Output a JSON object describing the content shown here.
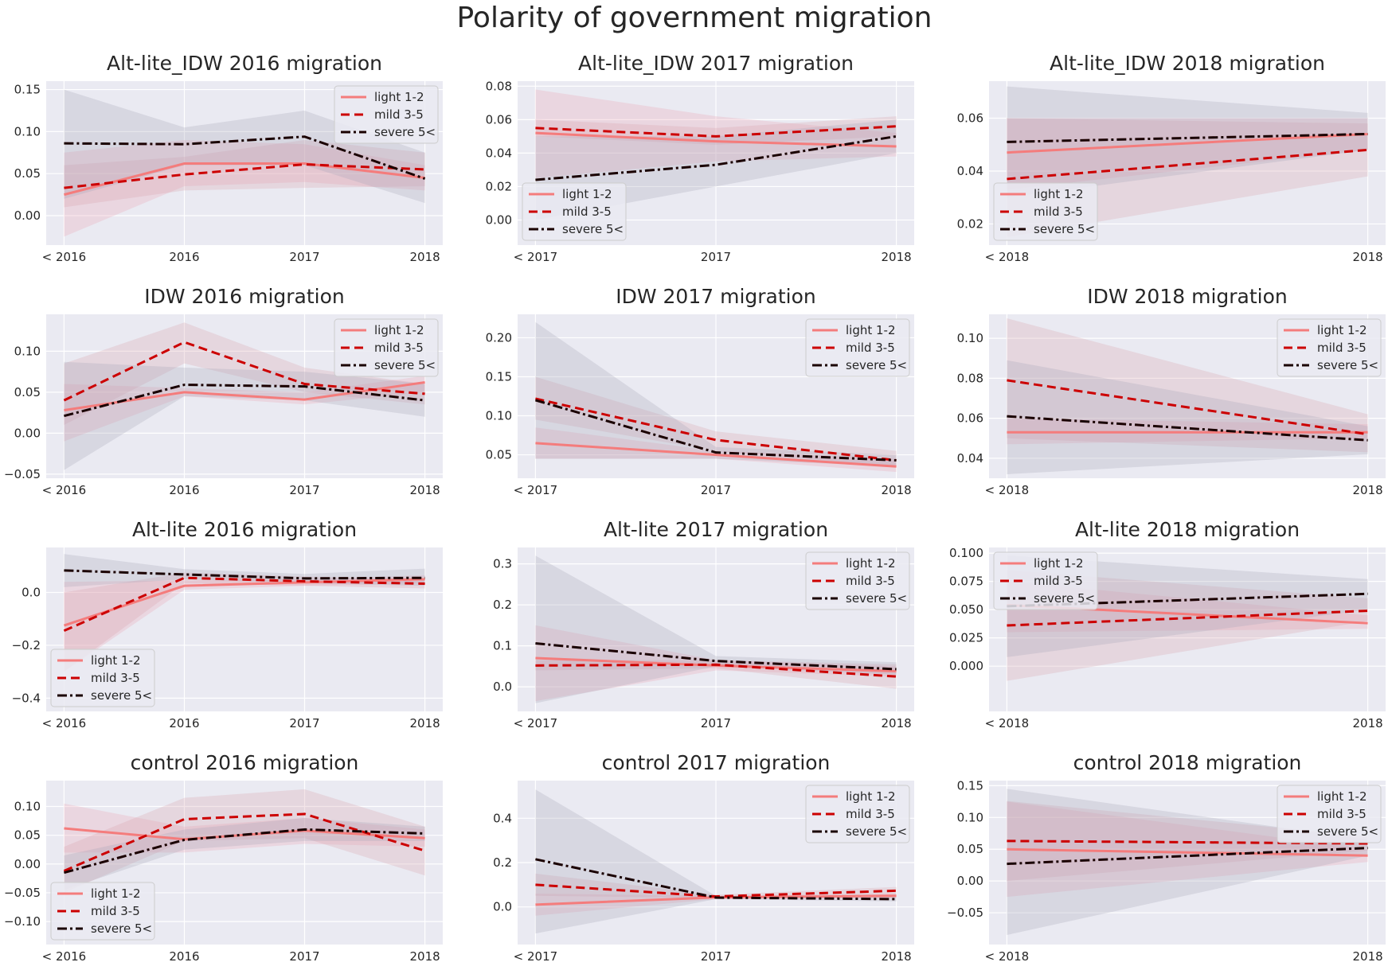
{
  "figure": {
    "title": "Polarity of government migration"
  },
  "series_styles": [
    {
      "name": "light 1-2",
      "color": "#f47c7c",
      "band": "#e8a3b3",
      "dash": ""
    },
    {
      "name": "mild 3-5",
      "color": "#cc0000",
      "band": "#d9a0ae",
      "dash": "11,6"
    },
    {
      "name": "severe 5<",
      "color": "#1a0000",
      "band": "#a6a6b8",
      "dash": "12,4,3,4"
    }
  ],
  "chart_data": [
    {
      "type": "line",
      "title": "Alt-lite_IDW 2016 migration",
      "categories": [
        "< 2016",
        "2016",
        "2017",
        "2018"
      ],
      "ylim": [
        -0.035,
        0.16
      ],
      "yticks": [
        "0.00",
        "0.05",
        "0.10",
        "0.15"
      ],
      "ytick_values": [
        0,
        0.05,
        0.1,
        0.15
      ],
      "legend": "upper-right",
      "grid": true,
      "series": [
        {
          "name": "light 1-2",
          "values": [
            0.025,
            0.062,
            0.062,
            0.045
          ],
          "lower": [
            -0.025,
            0.035,
            0.04,
            0.03
          ],
          "upper": [
            0.075,
            0.09,
            0.085,
            0.06
          ]
        },
        {
          "name": "mild 3-5",
          "values": [
            0.033,
            0.049,
            0.061,
            0.055
          ],
          "lower": [
            0.01,
            0.03,
            0.033,
            0.035
          ],
          "upper": [
            0.06,
            0.07,
            0.09,
            0.075
          ]
        },
        {
          "name": "severe 5<",
          "values": [
            0.086,
            0.085,
            0.094,
            0.044
          ],
          "lower": [
            0.02,
            0.06,
            0.06,
            0.015
          ],
          "upper": [
            0.15,
            0.105,
            0.125,
            0.075
          ]
        }
      ]
    },
    {
      "type": "line",
      "title": "Alt-lite_IDW 2017 migration",
      "categories": [
        "< 2017",
        "2017",
        "2018"
      ],
      "ylim": [
        -0.015,
        0.083
      ],
      "yticks": [
        "0.00",
        "0.02",
        "0.04",
        "0.06",
        "0.08"
      ],
      "ytick_values": [
        0,
        0.02,
        0.04,
        0.06,
        0.08
      ],
      "legend": "lower-left",
      "grid": true,
      "series": [
        {
          "name": "light 1-2",
          "values": [
            0.052,
            0.047,
            0.044
          ],
          "lower": [
            0.025,
            0.035,
            0.038
          ],
          "upper": [
            0.078,
            0.062,
            0.052
          ]
        },
        {
          "name": "mild 3-5",
          "values": [
            0.055,
            0.05,
            0.056
          ],
          "lower": [
            0.05,
            0.045,
            0.05
          ],
          "upper": [
            0.06,
            0.055,
            0.062
          ]
        },
        {
          "name": "severe 5<",
          "values": [
            0.024,
            0.033,
            0.05
          ],
          "lower": [
            0.0,
            0.02,
            0.04
          ],
          "upper": [
            0.05,
            0.05,
            0.06
          ]
        }
      ]
    },
    {
      "type": "line",
      "title": "Alt-lite_IDW 2018 migration",
      "categories": [
        "< 2018",
        "2018"
      ],
      "ylim": [
        0.012,
        0.074
      ],
      "yticks": [
        "0.02",
        "0.04",
        "0.06"
      ],
      "ytick_values": [
        0.02,
        0.04,
        0.06
      ],
      "legend": "lower-left",
      "grid": true,
      "series": [
        {
          "name": "light 1-2",
          "values": [
            0.047,
            0.054
          ],
          "lower": [
            0.033,
            0.048
          ],
          "upper": [
            0.06,
            0.06
          ]
        },
        {
          "name": "mild 3-5",
          "values": [
            0.037,
            0.048
          ],
          "lower": [
            0.015,
            0.038
          ],
          "upper": [
            0.06,
            0.058
          ]
        },
        {
          "name": "severe 5<",
          "values": [
            0.051,
            0.054
          ],
          "lower": [
            0.03,
            0.048
          ],
          "upper": [
            0.072,
            0.062
          ]
        }
      ]
    },
    {
      "type": "line",
      "title": "IDW 2016 migration",
      "categories": [
        "< 2016",
        "2016",
        "2017",
        "2018"
      ],
      "ylim": [
        -0.055,
        0.145
      ],
      "yticks": [
        "−0.05",
        "0.00",
        "0.05",
        "0.10"
      ],
      "ytick_values": [
        -0.05,
        0,
        0.05,
        0.1
      ],
      "legend": "upper-right",
      "grid": true,
      "series": [
        {
          "name": "light 1-2",
          "values": [
            0.028,
            0.05,
            0.041,
            0.062
          ],
          "lower": [
            -0.01,
            0.045,
            0.035,
            0.05
          ],
          "upper": [
            0.06,
            0.055,
            0.05,
            0.07
          ]
        },
        {
          "name": "mild 3-5",
          "values": [
            0.04,
            0.111,
            0.06,
            0.048
          ],
          "lower": [
            0.01,
            0.085,
            0.05,
            0.035
          ],
          "upper": [
            0.085,
            0.135,
            0.08,
            0.06
          ]
        },
        {
          "name": "severe 5<",
          "values": [
            0.021,
            0.059,
            0.057,
            0.04
          ],
          "lower": [
            -0.045,
            0.045,
            0.04,
            0.02
          ],
          "upper": [
            0.087,
            0.08,
            0.075,
            0.06
          ]
        }
      ]
    },
    {
      "type": "line",
      "title": "IDW 2017 migration",
      "categories": [
        "< 2017",
        "2017",
        "2018"
      ],
      "ylim": [
        0.02,
        0.23
      ],
      "yticks": [
        "0.05",
        "0.10",
        "0.15",
        "0.20"
      ],
      "ytick_values": [
        0.05,
        0.1,
        0.15,
        0.2
      ],
      "legend": "upper-right",
      "grid": true,
      "series": [
        {
          "name": "light 1-2",
          "values": [
            0.065,
            0.05,
            0.035
          ],
          "lower": [
            0.045,
            0.045,
            0.028
          ],
          "upper": [
            0.085,
            0.055,
            0.045
          ]
        },
        {
          "name": "mild 3-5",
          "values": [
            0.122,
            0.069,
            0.043
          ],
          "lower": [
            0.095,
            0.055,
            0.035
          ],
          "upper": [
            0.15,
            0.08,
            0.055
          ]
        },
        {
          "name": "severe 5<",
          "values": [
            0.12,
            0.053,
            0.043
          ],
          "lower": [
            0.045,
            0.045,
            0.035
          ],
          "upper": [
            0.22,
            0.06,
            0.05
          ]
        }
      ]
    },
    {
      "type": "line",
      "title": "IDW 2018 migration",
      "categories": [
        "< 2018",
        "2018"
      ],
      "ylim": [
        0.03,
        0.112
      ],
      "yticks": [
        "0.04",
        "0.06",
        "0.08",
        "0.10"
      ],
      "ytick_values": [
        0.04,
        0.06,
        0.08,
        0.1
      ],
      "legend": "upper-right",
      "grid": true,
      "series": [
        {
          "name": "light 1-2",
          "values": [
            0.053,
            0.053
          ],
          "lower": [
            0.047,
            0.05
          ],
          "upper": [
            0.06,
            0.057
          ]
        },
        {
          "name": "mild 3-5",
          "values": [
            0.079,
            0.052
          ],
          "lower": [
            0.05,
            0.043
          ],
          "upper": [
            0.11,
            0.062
          ]
        },
        {
          "name": "severe 5<",
          "values": [
            0.061,
            0.049
          ],
          "lower": [
            0.032,
            0.042
          ],
          "upper": [
            0.089,
            0.056
          ]
        }
      ]
    },
    {
      "type": "line",
      "title": "Alt-lite 2016 migration",
      "categories": [
        "< 2016",
        "2016",
        "2017",
        "2018"
      ],
      "ylim": [
        -0.45,
        0.17
      ],
      "yticks": [
        "−0.4",
        "−0.2",
        "0.0"
      ],
      "ytick_values": [
        -0.4,
        -0.2,
        0
      ],
      "legend": "lower-left",
      "grid": true,
      "series": [
        {
          "name": "light 1-2",
          "values": [
            -0.125,
            0.025,
            0.038,
            0.05
          ],
          "lower": [
            -0.3,
            0.01,
            0.025,
            0.035
          ],
          "upper": [
            0.04,
            0.045,
            0.05,
            0.065
          ]
        },
        {
          "name": "mild 3-5",
          "values": [
            -0.145,
            0.055,
            0.042,
            0.033
          ],
          "lower": [
            -0.3,
            0.035,
            0.025,
            0.015
          ],
          "upper": [
            0.0,
            0.075,
            0.06,
            0.05
          ]
        },
        {
          "name": "severe 5<",
          "values": [
            0.083,
            0.068,
            0.053,
            0.055
          ],
          "lower": [
            0.02,
            0.05,
            0.035,
            0.025
          ],
          "upper": [
            0.145,
            0.088,
            0.07,
            0.09
          ]
        }
      ]
    },
    {
      "type": "line",
      "title": "Alt-lite 2017 migration",
      "categories": [
        "< 2017",
        "2017",
        "2018"
      ],
      "ylim": [
        -0.06,
        0.34
      ],
      "yticks": [
        "0.0",
        "0.1",
        "0.2",
        "0.3"
      ],
      "ytick_values": [
        0,
        0.1,
        0.2,
        0.3
      ],
      "legend": "upper-right",
      "grid": true,
      "series": [
        {
          "name": "light 1-2",
          "values": [
            0.07,
            0.052,
            0.038
          ],
          "lower": [
            -0.035,
            0.04,
            0.025
          ],
          "upper": [
            0.15,
            0.065,
            0.05
          ]
        },
        {
          "name": "mild 3-5",
          "values": [
            0.052,
            0.054,
            0.025
          ],
          "lower": [
            0.04,
            0.045,
            -0.005
          ],
          "upper": [
            0.065,
            0.065,
            0.055
          ]
        },
        {
          "name": "severe 5<",
          "values": [
            0.106,
            0.063,
            0.043
          ],
          "lower": [
            -0.04,
            0.05,
            0.03
          ],
          "upper": [
            0.32,
            0.075,
            0.06
          ]
        }
      ]
    },
    {
      "type": "line",
      "title": "Alt-lite 2018 migration",
      "categories": [
        "< 2018",
        "2018"
      ],
      "ylim": [
        -0.04,
        0.105
      ],
      "yticks": [
        "0.000",
        "0.025",
        "0.050",
        "0.075",
        "0.100"
      ],
      "ytick_values": [
        0,
        0.025,
        0.05,
        0.075,
        0.1
      ],
      "legend": "upper-left",
      "grid": true,
      "series": [
        {
          "name": "light 1-2",
          "values": [
            0.054,
            0.038
          ],
          "lower": [
            0.03,
            0.033
          ],
          "upper": [
            0.075,
            0.045
          ]
        },
        {
          "name": "mild 3-5",
          "values": [
            0.036,
            0.049
          ],
          "lower": [
            -0.013,
            0.04
          ],
          "upper": [
            0.085,
            0.06
          ]
        },
        {
          "name": "severe 5<",
          "values": [
            0.053,
            0.064
          ],
          "lower": [
            0.008,
            0.05
          ],
          "upper": [
            0.098,
            0.077
          ]
        }
      ]
    },
    {
      "type": "line",
      "title": "control 2016 migration",
      "categories": [
        "< 2016",
        "2016",
        "2017",
        "2018"
      ],
      "ylim": [
        -0.14,
        0.145
      ],
      "yticks": [
        "−0.10",
        "−0.05",
        "0.00",
        "0.05",
        "0.10"
      ],
      "ytick_values": [
        -0.1,
        -0.05,
        0,
        0.05,
        0.1
      ],
      "legend": "lower-left",
      "grid": true,
      "series": [
        {
          "name": "light 1-2",
          "values": [
            0.062,
            0.043,
            0.058,
            0.045
          ],
          "lower": [
            0.02,
            0.02,
            0.035,
            0.03
          ],
          "upper": [
            0.105,
            0.065,
            0.08,
            0.06
          ]
        },
        {
          "name": "mild 3-5",
          "values": [
            -0.012,
            0.078,
            0.087,
            0.023
          ],
          "lower": [
            -0.05,
            0.04,
            0.045,
            -0.02
          ],
          "upper": [
            0.03,
            0.115,
            0.13,
            0.065
          ]
        },
        {
          "name": "severe 5<",
          "values": [
            -0.015,
            0.042,
            0.06,
            0.053
          ],
          "lower": [
            -0.045,
            0.025,
            0.04,
            0.04
          ],
          "upper": [
            0.015,
            0.06,
            0.08,
            0.065
          ]
        }
      ]
    },
    {
      "type": "line",
      "title": "control 2017 migration",
      "categories": [
        "< 2017",
        "2017",
        "2018"
      ],
      "ylim": [
        -0.17,
        0.57
      ],
      "yticks": [
        "0.0",
        "0.2",
        "0.4"
      ],
      "ytick_values": [
        0,
        0.2,
        0.4
      ],
      "legend": "upper-right",
      "grid": true,
      "series": [
        {
          "name": "light 1-2",
          "values": [
            0.01,
            0.043,
            0.05
          ],
          "lower": [
            -0.04,
            0.035,
            0.04
          ],
          "upper": [
            0.06,
            0.05,
            0.06
          ]
        },
        {
          "name": "mild 3-5",
          "values": [
            0.1,
            0.047,
            0.073
          ],
          "lower": [
            0.05,
            0.04,
            0.055
          ],
          "upper": [
            0.15,
            0.055,
            0.09
          ]
        },
        {
          "name": "severe 5<",
          "values": [
            0.215,
            0.042,
            0.035
          ],
          "lower": [
            -0.12,
            0.035,
            0.025
          ],
          "upper": [
            0.53,
            0.05,
            0.045
          ]
        }
      ]
    },
    {
      "type": "line",
      "title": "control 2018 migration",
      "categories": [
        "< 2018",
        "2018"
      ],
      "ylim": [
        -0.1,
        0.158
      ],
      "yticks": [
        "−0.05",
        "0.00",
        "0.05",
        "0.10",
        "0.15"
      ],
      "ytick_values": [
        -0.05,
        0,
        0.05,
        0.1,
        0.15
      ],
      "legend": "upper-right",
      "grid": true,
      "series": [
        {
          "name": "light 1-2",
          "values": [
            0.05,
            0.04
          ],
          "lower": [
            -0.025,
            0.03
          ],
          "upper": [
            0.125,
            0.05
          ]
        },
        {
          "name": "mild 3-5",
          "values": [
            0.063,
            0.059
          ],
          "lower": [
            0.0,
            0.048
          ],
          "upper": [
            0.126,
            0.07
          ]
        },
        {
          "name": "severe 5<",
          "values": [
            0.027,
            0.052
          ],
          "lower": [
            -0.085,
            0.04
          ],
          "upper": [
            0.145,
            0.065
          ]
        }
      ]
    }
  ]
}
